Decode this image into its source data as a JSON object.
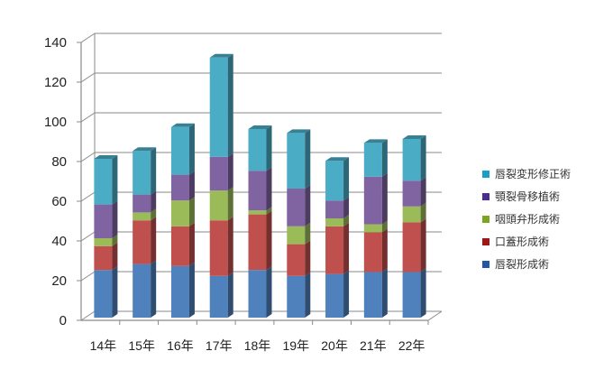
{
  "chart_data": {
    "type": "bar",
    "stacked": true,
    "style": "3d-column",
    "title": "",
    "xlabel": "",
    "ylabel": "",
    "categories": [
      "14年",
      "15年",
      "16年",
      "17年",
      "18年",
      "19年",
      "20年",
      "21年",
      "22年"
    ],
    "series": [
      {
        "name": "唇裂形成術",
        "color": "#4f81bd",
        "values": [
          24,
          27,
          26,
          21,
          24,
          21,
          22,
          23,
          23
        ]
      },
      {
        "name": "口蓋形成術",
        "color": "#c0504d",
        "values": [
          12,
          22,
          20,
          28,
          28,
          16,
          24,
          20,
          25
        ]
      },
      {
        "name": "咽頭弁形成術",
        "color": "#9bbb59",
        "values": [
          4,
          4,
          13,
          15,
          2,
          9,
          4,
          4,
          8
        ]
      },
      {
        "name": "顎裂骨移植術",
        "color": "#8064a2",
        "values": [
          17,
          9,
          13,
          17,
          20,
          19,
          9,
          24,
          13
        ]
      },
      {
        "name": "唇裂変形修正術",
        "color": "#4bacc6",
        "values": [
          23,
          22,
          24,
          50,
          21,
          28,
          20,
          17,
          21
        ]
      }
    ],
    "totals": [
      80,
      84,
      96,
      131,
      95,
      93,
      79,
      88,
      90
    ],
    "ylim": [
      0,
      140
    ],
    "yticks": [
      0,
      20,
      40,
      60,
      80,
      100,
      120,
      140
    ],
    "grid": true,
    "legend_position": "right"
  },
  "legend": {
    "items": [
      {
        "label": "唇裂変形修正術",
        "color": "#17a0c4"
      },
      {
        "label": "顎裂骨移植術",
        "color": "#4b2c8f"
      },
      {
        "label": "咽頭弁形成術",
        "color": "#7aa51f"
      },
      {
        "label": "口蓋形成術",
        "color": "#a31616"
      },
      {
        "label": "唇裂形成術",
        "color": "#1f56a6"
      }
    ]
  }
}
